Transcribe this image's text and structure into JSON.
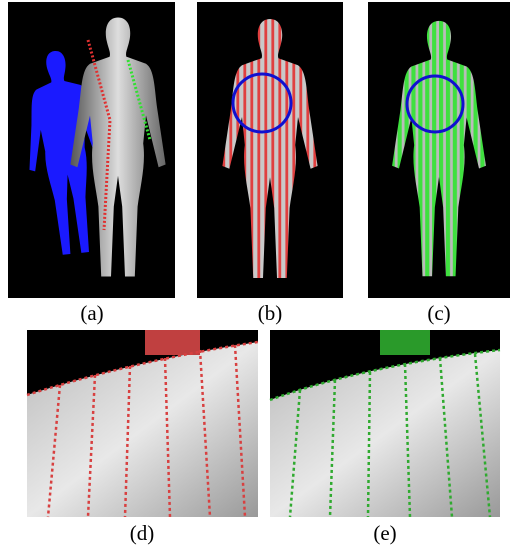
{
  "captions": [
    "(a)",
    "(b)",
    "(c)",
    "(d)",
    "(e)"
  ]
}
